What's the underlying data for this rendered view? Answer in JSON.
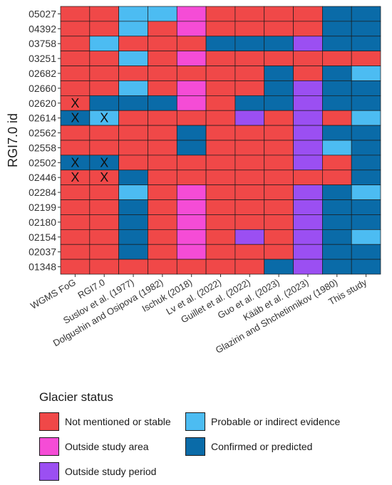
{
  "chart_data": {
    "type": "heatmap",
    "title": "",
    "xlabel": "",
    "ylabel": "RGI7.0 id",
    "x_categories": [
      "WGMS FoG",
      "RGI7.0",
      "Suslov et al. (1977)",
      "Dolgushin and Osipova (1982)",
      "Ischuk (2018)",
      "Lv et al. (2022)",
      "Guillet et al. (2022)",
      "Guo et al. (2023)",
      "Kääb et al. (2023)",
      "Glazirin and Shchetinnikov (1980)",
      "This study"
    ],
    "y_categories": [
      "05027",
      "04392",
      "03758",
      "03251",
      "02682",
      "02660",
      "02620",
      "02614",
      "02562",
      "02558",
      "02502",
      "02446",
      "02284",
      "02199",
      "02180",
      "02154",
      "02037",
      "01348"
    ],
    "status_colors": {
      "N": "#f04848",
      "O": "#f54cd6",
      "P": "#9b4ff2",
      "B": "#4cbcf2",
      "C": "#0a6ba8"
    },
    "cells": [
      [
        "N",
        "N",
        "B",
        "B",
        "O",
        "N",
        "N",
        "N",
        "N",
        "C",
        "C"
      ],
      [
        "N",
        "N",
        "B",
        "N",
        "O",
        "N",
        "N",
        "N",
        "N",
        "C",
        "C"
      ],
      [
        "N",
        "B",
        "N",
        "N",
        "N",
        "C",
        "C",
        "C",
        "P",
        "C",
        "C"
      ],
      [
        "N",
        "N",
        "B",
        "N",
        "O",
        "N",
        "N",
        "N",
        "N",
        "N",
        "N"
      ],
      [
        "N",
        "N",
        "N",
        "N",
        "N",
        "N",
        "N",
        "C",
        "N",
        "C",
        "B"
      ],
      [
        "N",
        "N",
        "B",
        "N",
        "O",
        "N",
        "N",
        "C",
        "P",
        "C",
        "C"
      ],
      [
        "N",
        "C",
        "C",
        "C",
        "O",
        "N",
        "C",
        "C",
        "P",
        "C",
        "C"
      ],
      [
        "C",
        "B",
        "N",
        "N",
        "N",
        "N",
        "P",
        "N",
        "P",
        "N",
        "B"
      ],
      [
        "N",
        "N",
        "N",
        "N",
        "C",
        "N",
        "N",
        "N",
        "P",
        "C",
        "C"
      ],
      [
        "N",
        "N",
        "N",
        "N",
        "C",
        "N",
        "N",
        "N",
        "P",
        "B",
        "C"
      ],
      [
        "C",
        "C",
        "N",
        "N",
        "N",
        "N",
        "N",
        "N",
        "P",
        "N",
        "C"
      ],
      [
        "N",
        "N",
        "C",
        "N",
        "N",
        "N",
        "N",
        "N",
        "N",
        "N",
        "C"
      ],
      [
        "N",
        "N",
        "B",
        "N",
        "O",
        "N",
        "N",
        "N",
        "P",
        "C",
        "B"
      ],
      [
        "N",
        "N",
        "C",
        "N",
        "O",
        "N",
        "N",
        "N",
        "P",
        "C",
        "C"
      ],
      [
        "N",
        "N",
        "C",
        "N",
        "O",
        "N",
        "N",
        "N",
        "P",
        "C",
        "C"
      ],
      [
        "N",
        "N",
        "C",
        "N",
        "O",
        "N",
        "P",
        "N",
        "P",
        "C",
        "B"
      ],
      [
        "N",
        "N",
        "C",
        "N",
        "O",
        "N",
        "N",
        "N",
        "P",
        "C",
        "C"
      ],
      [
        "N",
        "N",
        "N",
        "N",
        "N",
        "N",
        "N",
        "C",
        "P",
        "C",
        "C"
      ]
    ],
    "marks": [
      {
        "row": "02620",
        "col": "WGMS FoG",
        "label": "X"
      },
      {
        "row": "02614",
        "col": "WGMS FoG",
        "label": "X"
      },
      {
        "row": "02614",
        "col": "RGI7.0",
        "label": "X"
      },
      {
        "row": "02502",
        "col": "WGMS FoG",
        "label": "X"
      },
      {
        "row": "02502",
        "col": "RGI7.0",
        "label": "X"
      },
      {
        "row": "02446",
        "col": "WGMS FoG",
        "label": "X"
      },
      {
        "row": "02446",
        "col": "RGI7.0",
        "label": "X"
      }
    ],
    "legend_position": "bottom",
    "legend": {
      "title": "Glacier status",
      "items": [
        {
          "key": "N",
          "label": "Not mentioned or stable"
        },
        {
          "key": "B",
          "label": "Probable or indirect evidence"
        },
        {
          "key": "O",
          "label": "Outside study area"
        },
        {
          "key": "C",
          "label": "Confirmed or predicted"
        },
        {
          "key": "P",
          "label": "Outside study period"
        }
      ]
    }
  }
}
